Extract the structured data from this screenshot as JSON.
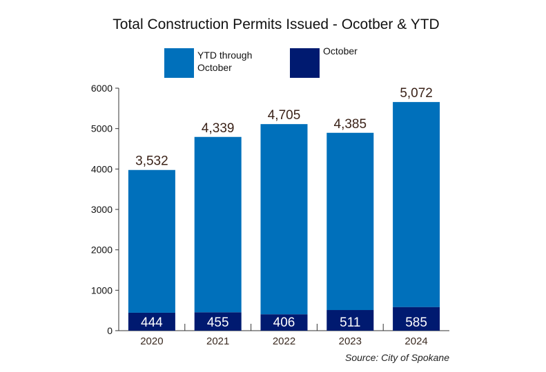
{
  "chart_data": {
    "type": "bar",
    "stacked": true,
    "title": "Total Construction Permits Issued - Ocotber & YTD",
    "categories": [
      "2020",
      "2021",
      "2022",
      "2023",
      "2024"
    ],
    "series": [
      {
        "name": "October",
        "color": "#001a70",
        "values": [
          444,
          455,
          406,
          511,
          585
        ]
      },
      {
        "name": "YTD through October",
        "color": "#0070bb",
        "values": [
          3532,
          4339,
          4705,
          4385,
          5072
        ]
      }
    ],
    "data_labels": {
      "October": [
        "444",
        "455",
        "406",
        "511",
        "585"
      ],
      "YTD through October": [
        "3,532",
        "4,339",
        "4,705",
        "4,385",
        "5,072"
      ]
    },
    "legend": {
      "position": "top",
      "entries": [
        [
          "YTD through",
          "October"
        ],
        [
          "October"
        ]
      ]
    },
    "ylim": [
      0,
      6000
    ],
    "yticks": [
      "0",
      "1000",
      "2000",
      "3000",
      "4000",
      "5000",
      "6000"
    ],
    "xlabel": "",
    "ylabel": "",
    "grid": false,
    "source": "Source: City of Spokane"
  }
}
